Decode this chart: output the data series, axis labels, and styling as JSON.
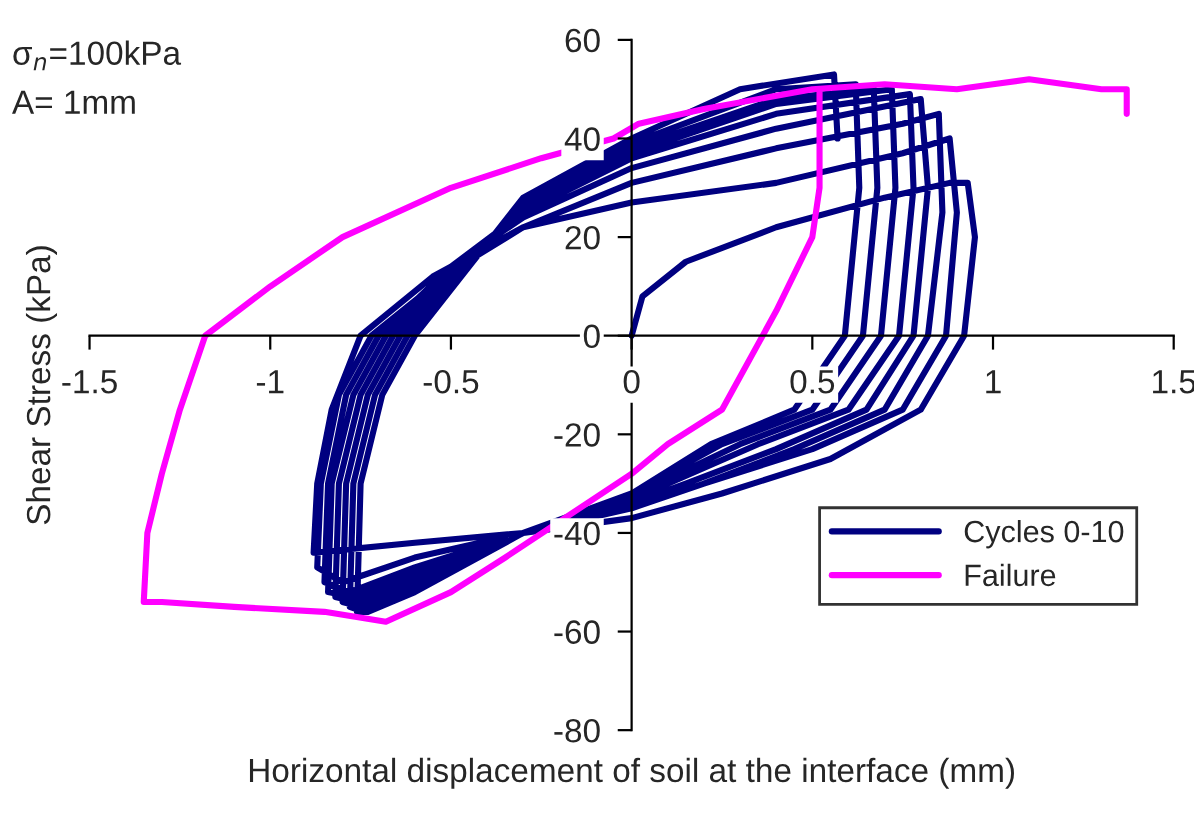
{
  "chart_data": {
    "type": "line",
    "xlabel": "Horizontal displacement of soil at the interface (mm)",
    "ylabel": "Shear Stress (kPa)",
    "annotations": [
      "σ$_{n}$=100kPa",
      "A= 1mm"
    ],
    "xlim": [
      -1.5,
      1.5
    ],
    "xticks": [
      -1.5,
      -1,
      -0.5,
      0,
      0.5,
      1,
      1.5
    ],
    "ylim": [
      -80,
      60
    ],
    "yticks": [
      -80,
      -60,
      -40,
      -20,
      0,
      20,
      40,
      60
    ],
    "grid": false,
    "legend": "bottom right",
    "marker": "none",
    "line_style": "solid",
    "series": [
      {
        "name": "Cycles 0-10",
        "color": "#000080",
        "x": [
          0,
          0.03,
          0.15,
          0.4,
          0.7,
          0.88,
          0.93,
          0.95,
          0.92,
          0.8,
          0.55,
          0.25,
          0,
          -0.3,
          -0.6,
          -0.88,
          -0.87,
          -0.83,
          -0.75,
          -0.55,
          -0.3,
          0,
          0.4,
          0.75,
          0.88,
          0.9,
          0.87,
          0.75,
          0.5,
          0.2,
          0,
          -0.3,
          -0.6,
          -0.8,
          -0.87,
          -0.86,
          -0.81,
          -0.72,
          -0.5,
          -0.3,
          0,
          0.4,
          0.75,
          0.85,
          0.86,
          0.82,
          0.7,
          0.45,
          0.2,
          0,
          -0.3,
          -0.6,
          -0.78,
          -0.85,
          -0.84,
          -0.79,
          -0.7,
          -0.5,
          -0.3,
          0,
          0.4,
          0.8,
          0.82,
          0.78,
          0.65,
          0.4,
          0.15,
          0,
          -0.3,
          -0.6,
          -0.77,
          -0.84,
          -0.83,
          -0.77,
          -0.68,
          -0.5,
          -0.3,
          0,
          0.4,
          0.77,
          0.78,
          0.74,
          0.6,
          0.35,
          0.1,
          0,
          -0.3,
          -0.6,
          -0.76,
          -0.82,
          -0.81,
          -0.75,
          -0.66,
          -0.48,
          -0.3,
          0,
          0.4,
          0.72,
          0.73,
          0.69,
          0.55,
          0.3,
          0.1,
          0,
          -0.3,
          -0.6,
          -0.75,
          -0.8,
          -0.79,
          -0.73,
          -0.64,
          -0.47,
          -0.3,
          0,
          0.4,
          0.67,
          0.68,
          0.64,
          0.5,
          0.25,
          0.05,
          0,
          -0.3,
          -0.6,
          -0.74,
          -0.78,
          -0.77,
          -0.71,
          -0.62,
          -0.46,
          -0.3,
          0,
          0.4,
          0.62,
          0.63,
          0.59,
          0.45,
          0.22,
          0,
          -0.3,
          -0.6,
          -0.73,
          -0.76,
          -0.75,
          -0.69,
          -0.6,
          -0.45,
          -0.3,
          0,
          0.3,
          0.56,
          0.57
        ],
        "values": [
          0,
          8,
          15,
          22,
          28,
          31,
          31,
          20,
          0,
          -15,
          -25,
          -32,
          -37,
          -40,
          -42,
          -44,
          -30,
          -15,
          0,
          12,
          22,
          27,
          31,
          37,
          40,
          25,
          0,
          -15,
          -23,
          -30,
          -35,
          -40,
          -45,
          -50,
          -47,
          -30,
          -12,
          0,
          13,
          22,
          31,
          38,
          43,
          45,
          25,
          0,
          -15,
          -23,
          -30,
          -35,
          -40,
          -47,
          -52,
          -50,
          -30,
          -12,
          0,
          14,
          24,
          34,
          42,
          48,
          30,
          0,
          -15,
          -23,
          -30,
          -34,
          -40,
          -48,
          -53,
          -52,
          -30,
          -12,
          0,
          14,
          25,
          36,
          45,
          49,
          30,
          0,
          -15,
          -22,
          -30,
          -34,
          -40,
          -49,
          -54,
          -53,
          -30,
          -12,
          0,
          14,
          25,
          37,
          47,
          50,
          30,
          0,
          -15,
          -22,
          -29,
          -33,
          -40,
          -50,
          -55,
          -54,
          -30,
          -12,
          0,
          14,
          26,
          38,
          48,
          50,
          30,
          0,
          -15,
          -22,
          -30,
          -33,
          -40,
          -51,
          -56,
          -55,
          -30,
          -12,
          0,
          14,
          27,
          39,
          50,
          51,
          30,
          0,
          -15,
          -22,
          -32,
          -40,
          -52,
          -56,
          -56,
          -30,
          -12,
          0,
          14,
          28,
          40,
          50,
          53,
          40
        ]
      },
      {
        "name": "Failure",
        "color": "#ff00ff",
        "x": [
          0.52,
          0.52,
          0.5,
          0.4,
          0.25,
          0.1,
          0,
          -0.35,
          -0.5,
          -0.68,
          -0.85,
          -1.1,
          -1.3,
          -1.35,
          -1.34,
          -1.3,
          -1.25,
          -1.18,
          -1.0,
          -0.8,
          -0.5,
          -0.25,
          -0.05,
          0.02,
          0.2,
          0.5,
          0.7,
          0.9,
          1.0,
          1.1,
          1.2,
          1.3,
          1.37,
          1.37
        ],
        "values": [
          50,
          30,
          20,
          5,
          -15,
          -22,
          -28,
          -45,
          -52,
          -58,
          -56,
          -55,
          -54,
          -54,
          -40,
          -28,
          -15,
          0,
          10,
          20,
          30,
          36,
          40,
          43,
          46,
          50,
          51,
          50,
          51,
          52,
          51,
          50,
          50,
          45
        ]
      }
    ]
  }
}
